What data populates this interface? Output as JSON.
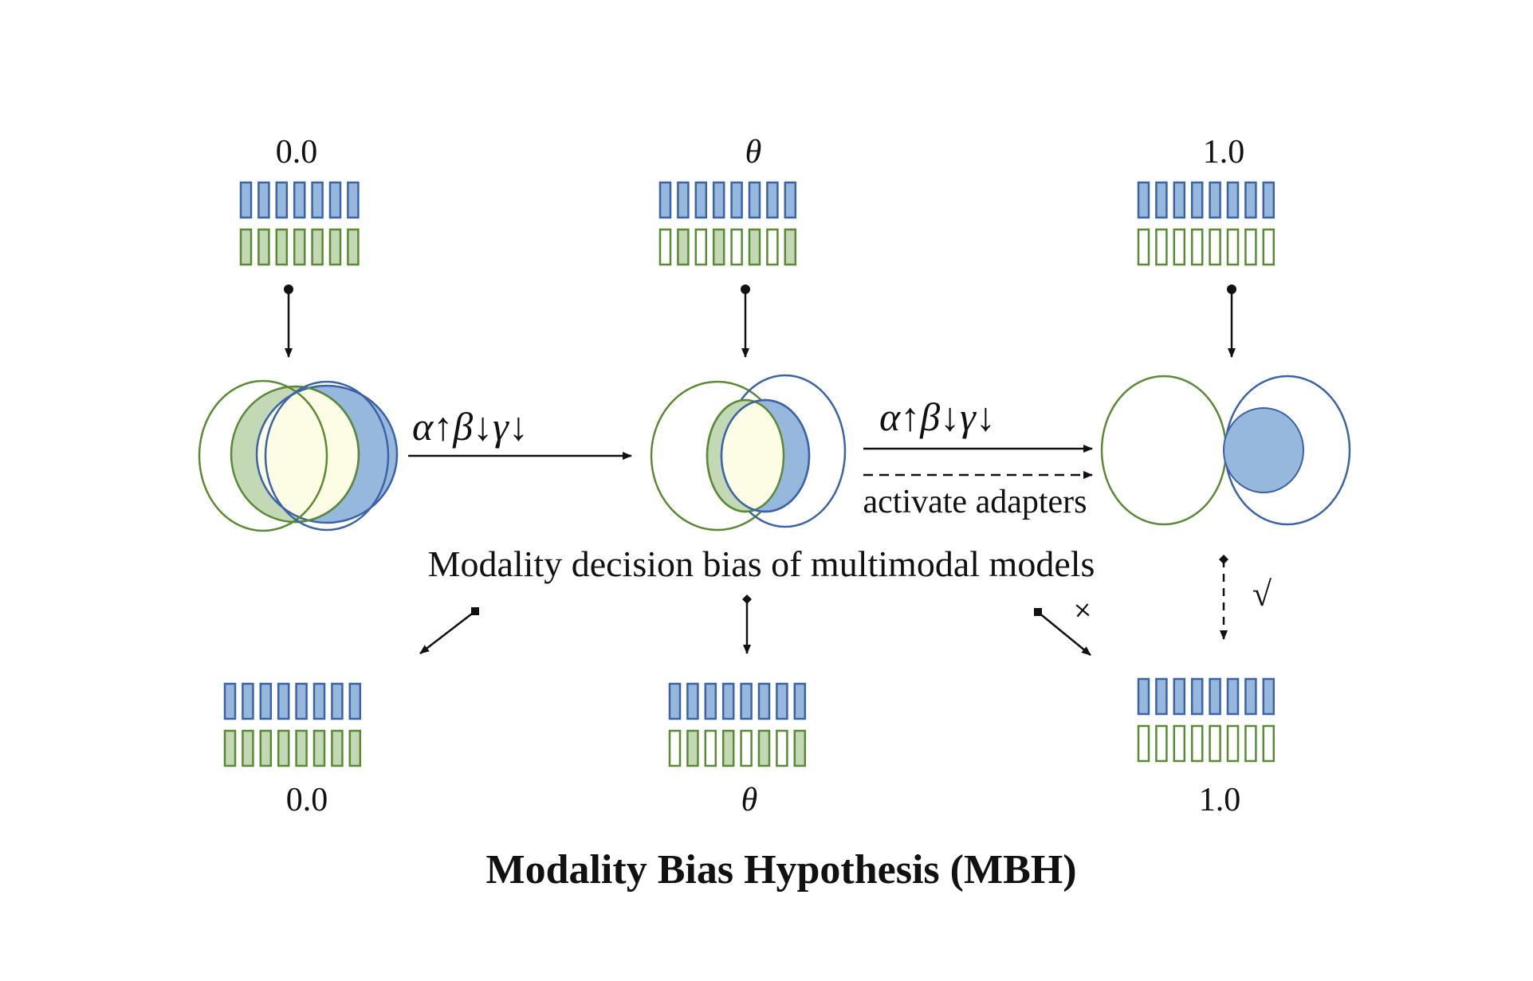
{
  "top_labels": [
    "0.0",
    "θ",
    "1.0"
  ],
  "bottom_labels": [
    "0.0",
    "θ",
    "1.0"
  ],
  "transition_formula": "α↑β↓γ↓",
  "adapter_label": "activate adapters",
  "middle_caption": "Modality decision bias of multimodal models",
  "check_mark": "√",
  "cross_mark": "+",
  "title": "Modality Bias Hypothesis (MBH)",
  "colors": {
    "blue_fill": "#96b8dc",
    "blue_stroke": "#3c63a6",
    "green_fill": "#c3d8b5",
    "green_stroke": "#5b8a35",
    "overlap_fill": "#fdfde6",
    "empty_fill": "#ffffff",
    "ink": "#111111"
  },
  "bar_groups": [
    {
      "position": "top-0.0",
      "count": 7,
      "green_filled": true
    },
    {
      "position": "top-theta",
      "count": 8,
      "green_filled_fraction": 0.5
    },
    {
      "position": "top-1.0",
      "count": 8,
      "green_filled": false
    },
    {
      "position": "bottom-0.0",
      "count": 8,
      "green_filled": true
    },
    {
      "position": "bottom-theta",
      "count": 8,
      "green_filled_fraction": 0.5
    },
    {
      "position": "bottom-1.0",
      "count": 8,
      "green_filled": false
    }
  ]
}
